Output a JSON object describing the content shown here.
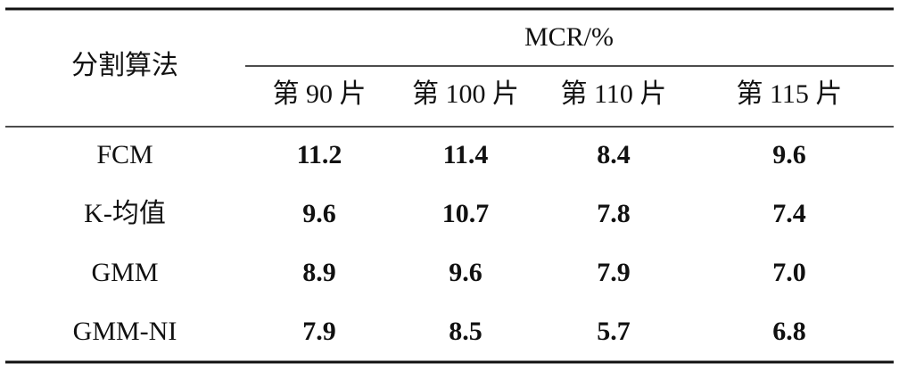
{
  "table": {
    "header": {
      "first": "分割算法",
      "group": "MCR/%",
      "columns": [
        "第 90 片",
        "第 100 片",
        "第 110 片",
        "第 115 片"
      ]
    },
    "rows": [
      [
        "FCM",
        "11.2",
        "11.4",
        "8.4",
        "9.6"
      ],
      [
        "K-均值",
        "9.6",
        "10.7",
        "7.8",
        "7.4"
      ],
      [
        "GMM",
        "8.9",
        "9.6",
        "7.9",
        "7.0"
      ],
      [
        "GMM-NI",
        "7.9",
        "8.5",
        "5.7",
        "6.8"
      ]
    ]
  }
}
